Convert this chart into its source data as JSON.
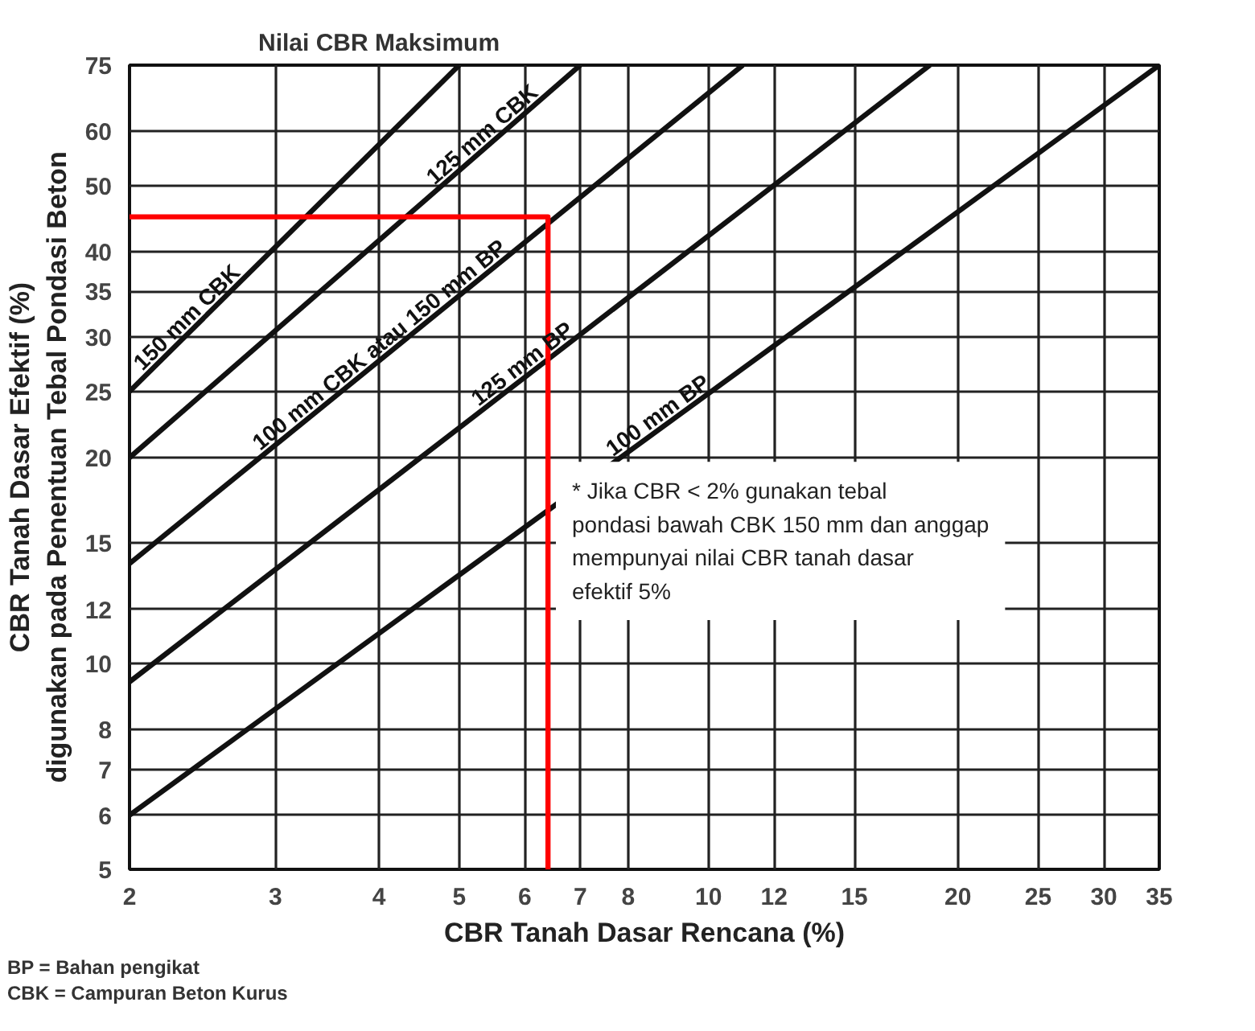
{
  "chart_data": {
    "type": "line",
    "xlabel": "CBR Tanah Dasar Rencana (%)",
    "ylabel": "CBR Tanah Dasar Efektif (%)\ndigunakan pada Penentuan Tebal Pondasi Beton",
    "log": "xy",
    "grid": true,
    "marker": "none",
    "line_style": "solid",
    "xlim": [
      2,
      35
    ],
    "xticks": [
      2,
      3,
      4,
      5,
      6,
      7,
      8,
      10,
      12,
      15,
      20,
      25,
      30,
      35
    ],
    "ylim": [
      5,
      75
    ],
    "yticks": [
      5,
      6,
      7,
      8,
      10,
      12,
      15,
      20,
      25,
      30,
      35,
      40,
      50,
      60,
      75
    ],
    "series": [
      {
        "name": "150 mm CBK",
        "color": "#111111",
        "x": [
          2,
          5
        ],
        "values": [
          25,
          75
        ]
      },
      {
        "name": "125 mm CBK",
        "color": "#111111",
        "x": [
          2,
          7
        ],
        "values": [
          20,
          75
        ]
      },
      {
        "name": "100 mm CBK atau 150 mm BP",
        "color": "#111111",
        "x": [
          2,
          11
        ],
        "values": [
          14,
          75
        ]
      },
      {
        "name": "125 mm BP",
        "color": "#111111",
        "x": [
          2,
          18.5
        ],
        "values": [
          9.4,
          75
        ]
      },
      {
        "name": "100 mm BP",
        "color": "#111111",
        "x": [
          2,
          35
        ],
        "values": [
          6,
          75
        ]
      },
      {
        "color": "#ff0000",
        "x": [
          6.4,
          6.4,
          2
        ],
        "values": [
          5,
          45,
          45
        ]
      }
    ],
    "annotations": [
      "Nilai CBR Maksimum",
      "* Jika CBR < 2% gunakan tebal pondasi bawah CBK 150 mm dan anggap mempunyai nilai CBR tanah dasar efektif 5%",
      "BP = Bahan pengikat",
      "CBK = Campuran Beton Kurus"
    ]
  }
}
